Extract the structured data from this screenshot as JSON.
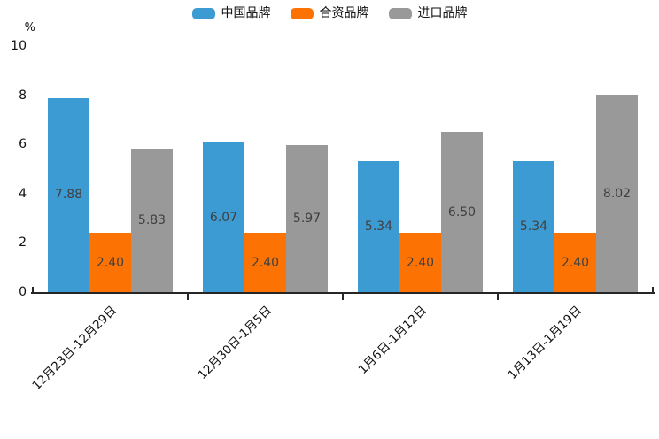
{
  "chart_data": {
    "type": "bar",
    "title": "",
    "ylabel": "%",
    "xlabel": "",
    "ylim": [
      0,
      10
    ],
    "yticks": [
      0,
      2,
      4,
      6,
      8,
      10
    ],
    "grid": false,
    "legend_position": "top",
    "categories": [
      "12月23日-12月29日",
      "12月30日-1月5日",
      "1月6日-1月12日",
      "1月13日-1月19日"
    ],
    "series": [
      {
        "name": "中国品牌",
        "color": "#3d9bd3",
        "values": [
          7.88,
          6.07,
          5.34,
          5.34
        ]
      },
      {
        "name": "合资品牌",
        "color": "#fc7304",
        "values": [
          2.4,
          2.4,
          2.4,
          2.4
        ]
      },
      {
        "name": "进口品牌",
        "color": "#999999",
        "values": [
          5.83,
          5.97,
          6.5,
          8.02
        ]
      }
    ],
    "value_labels": [
      [
        "7.88",
        "6.07",
        "5.34",
        "5.34"
      ],
      [
        "2.40",
        "2.40",
        "2.40",
        "2.40"
      ],
      [
        "5.83",
        "5.97",
        "6.50",
        "8.02"
      ]
    ],
    "axis_color": "#262626",
    "value_label_color": "#404040"
  }
}
